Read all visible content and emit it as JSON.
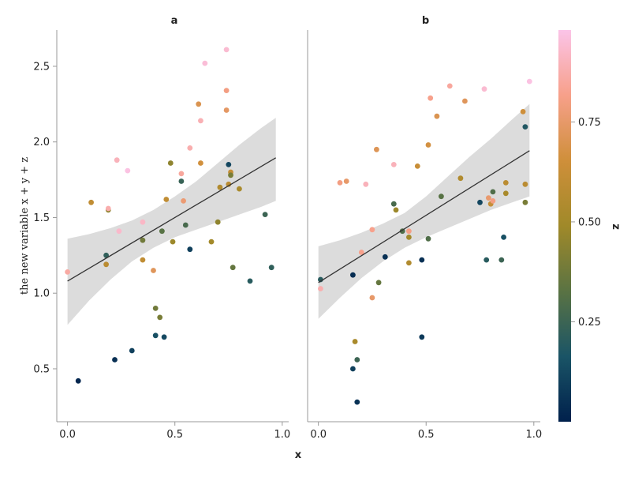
{
  "chart_data": {
    "type": "scatter",
    "xlabel": "x",
    "ylabel": "the new variable x + y + z",
    "colorbar_title": "z",
    "xlim": [
      -0.05,
      1.03
    ],
    "ylim": [
      0.15,
      2.74
    ],
    "x_ticks": [
      0.0,
      0.5,
      1.0
    ],
    "x_tick_labels": [
      "0.0",
      "0.5",
      "1.0"
    ],
    "y_ticks": [
      0.5,
      1.0,
      1.5,
      2.0,
      2.5
    ],
    "y_tick_labels": [
      "0.5",
      "1.0",
      "1.5",
      "2.0",
      "2.5"
    ],
    "colorbar_ticks": [
      0.25,
      0.5,
      0.75
    ],
    "colorbar_tick_labels": [
      "0.25",
      "0.50",
      "0.75"
    ],
    "colorbar_range": [
      0.0,
      0.98
    ],
    "colors": {
      "colormap": [
        "#00204c",
        "#1a5466",
        "#5a7343",
        "#a08929",
        "#cf8f3a",
        "#f7a08a",
        "#fbc4e8"
      ],
      "regression_line": "#333333",
      "confidence_band": "#dcdcdc",
      "axis": "#999999"
    },
    "panels": [
      {
        "title": "a",
        "fit": {
          "intercept": 1.08,
          "slope": 0.84
        },
        "band": {
          "x": [
            0.0,
            0.1,
            0.2,
            0.3,
            0.4,
            0.5,
            0.6,
            0.7,
            0.8,
            0.9,
            0.97
          ],
          "lower": [
            0.79,
            0.95,
            1.09,
            1.21,
            1.3,
            1.37,
            1.42,
            1.47,
            1.52,
            1.57,
            1.61
          ],
          "upper": [
            1.36,
            1.39,
            1.43,
            1.48,
            1.55,
            1.64,
            1.74,
            1.86,
            1.98,
            2.09,
            2.16
          ]
        },
        "points": [
          {
            "x": 0.0,
            "y": 1.14,
            "z": 0.86
          },
          {
            "x": 0.05,
            "y": 0.42,
            "z": 0.02
          },
          {
            "x": 0.11,
            "y": 1.6,
            "z": 0.6
          },
          {
            "x": 0.18,
            "y": 1.25,
            "z": 0.22
          },
          {
            "x": 0.18,
            "y": 1.19,
            "z": 0.58
          },
          {
            "x": 0.19,
            "y": 1.55,
            "z": 0.45
          },
          {
            "x": 0.19,
            "y": 1.56,
            "z": 0.88
          },
          {
            "x": 0.22,
            "y": 0.56,
            "z": 0.05
          },
          {
            "x": 0.23,
            "y": 1.88,
            "z": 0.9
          },
          {
            "x": 0.24,
            "y": 1.41,
            "z": 0.93
          },
          {
            "x": 0.28,
            "y": 1.81,
            "z": 0.97
          },
          {
            "x": 0.3,
            "y": 0.62,
            "z": 0.1
          },
          {
            "x": 0.35,
            "y": 1.47,
            "z": 0.92
          },
          {
            "x": 0.35,
            "y": 1.35,
            "z": 0.38
          },
          {
            "x": 0.35,
            "y": 1.22,
            "z": 0.6
          },
          {
            "x": 0.4,
            "y": 1.15,
            "z": 0.72
          },
          {
            "x": 0.41,
            "y": 0.9,
            "z": 0.38
          },
          {
            "x": 0.41,
            "y": 0.72,
            "z": 0.15
          },
          {
            "x": 0.43,
            "y": 0.84,
            "z": 0.4
          },
          {
            "x": 0.44,
            "y": 1.41,
            "z": 0.32
          },
          {
            "x": 0.45,
            "y": 0.71,
            "z": 0.13
          },
          {
            "x": 0.46,
            "y": 1.62,
            "z": 0.6
          },
          {
            "x": 0.48,
            "y": 1.86,
            "z": 0.45
          },
          {
            "x": 0.49,
            "y": 1.34,
            "z": 0.48
          },
          {
            "x": 0.53,
            "y": 1.79,
            "z": 0.85
          },
          {
            "x": 0.53,
            "y": 1.74,
            "z": 0.24
          },
          {
            "x": 0.54,
            "y": 1.61,
            "z": 0.77
          },
          {
            "x": 0.55,
            "y": 1.45,
            "z": 0.28
          },
          {
            "x": 0.57,
            "y": 1.29,
            "z": 0.1
          },
          {
            "x": 0.57,
            "y": 1.96,
            "z": 0.88
          },
          {
            "x": 0.61,
            "y": 2.25,
            "z": 0.7
          },
          {
            "x": 0.62,
            "y": 2.14,
            "z": 0.89
          },
          {
            "x": 0.62,
            "y": 1.86,
            "z": 0.66
          },
          {
            "x": 0.64,
            "y": 2.52,
            "z": 0.95
          },
          {
            "x": 0.67,
            "y": 1.34,
            "z": 0.5
          },
          {
            "x": 0.7,
            "y": 1.47,
            "z": 0.45
          },
          {
            "x": 0.71,
            "y": 1.7,
            "z": 0.55
          },
          {
            "x": 0.74,
            "y": 2.34,
            "z": 0.8
          },
          {
            "x": 0.74,
            "y": 2.21,
            "z": 0.74
          },
          {
            "x": 0.74,
            "y": 2.61,
            "z": 0.94
          },
          {
            "x": 0.75,
            "y": 1.85,
            "z": 0.12
          },
          {
            "x": 0.75,
            "y": 1.72,
            "z": 0.58
          },
          {
            "x": 0.76,
            "y": 1.8,
            "z": 0.62
          },
          {
            "x": 0.76,
            "y": 1.78,
            "z": 0.4
          },
          {
            "x": 0.77,
            "y": 1.17,
            "z": 0.35
          },
          {
            "x": 0.8,
            "y": 1.69,
            "z": 0.52
          },
          {
            "x": 0.85,
            "y": 1.08,
            "z": 0.2
          },
          {
            "x": 0.92,
            "y": 1.52,
            "z": 0.25
          },
          {
            "x": 0.95,
            "y": 1.17,
            "z": 0.22
          }
        ]
      },
      {
        "title": "b",
        "fit": {
          "intercept": 1.07,
          "slope": 0.89
        },
        "band": {
          "x": [
            0.0,
            0.1,
            0.2,
            0.3,
            0.4,
            0.5,
            0.6,
            0.7,
            0.8,
            0.9,
            0.98
          ],
          "lower": [
            0.83,
            0.97,
            1.1,
            1.21,
            1.3,
            1.37,
            1.43,
            1.49,
            1.55,
            1.6,
            1.64
          ],
          "upper": [
            1.31,
            1.35,
            1.4,
            1.46,
            1.53,
            1.64,
            1.77,
            1.9,
            2.02,
            2.15,
            2.25
          ]
        },
        "points": [
          {
            "x": 0.01,
            "y": 1.03,
            "z": 0.88
          },
          {
            "x": 0.01,
            "y": 1.09,
            "z": 0.2
          },
          {
            "x": 0.1,
            "y": 1.73,
            "z": 0.8
          },
          {
            "x": 0.13,
            "y": 1.74,
            "z": 0.75
          },
          {
            "x": 0.16,
            "y": 0.5,
            "z": 0.1
          },
          {
            "x": 0.16,
            "y": 1.12,
            "z": 0.04
          },
          {
            "x": 0.17,
            "y": 0.68,
            "z": 0.52
          },
          {
            "x": 0.18,
            "y": 0.56,
            "z": 0.25
          },
          {
            "x": 0.18,
            "y": 0.28,
            "z": 0.06
          },
          {
            "x": 0.2,
            "y": 1.27,
            "z": 0.82
          },
          {
            "x": 0.22,
            "y": 1.72,
            "z": 0.9
          },
          {
            "x": 0.25,
            "y": 1.42,
            "z": 0.82
          },
          {
            "x": 0.25,
            "y": 0.97,
            "z": 0.75
          },
          {
            "x": 0.27,
            "y": 1.95,
            "z": 0.71
          },
          {
            "x": 0.28,
            "y": 1.07,
            "z": 0.35
          },
          {
            "x": 0.31,
            "y": 1.24,
            "z": 0.05
          },
          {
            "x": 0.35,
            "y": 1.85,
            "z": 0.9
          },
          {
            "x": 0.35,
            "y": 1.59,
            "z": 0.28
          },
          {
            "x": 0.36,
            "y": 1.55,
            "z": 0.48
          },
          {
            "x": 0.39,
            "y": 1.41,
            "z": 0.3
          },
          {
            "x": 0.42,
            "y": 1.41,
            "z": 0.81
          },
          {
            "x": 0.42,
            "y": 1.37,
            "z": 0.5
          },
          {
            "x": 0.42,
            "y": 1.2,
            "z": 0.55
          },
          {
            "x": 0.46,
            "y": 1.84,
            "z": 0.63
          },
          {
            "x": 0.48,
            "y": 1.22,
            "z": 0.05
          },
          {
            "x": 0.48,
            "y": 0.71,
            "z": 0.08
          },
          {
            "x": 0.51,
            "y": 1.98,
            "z": 0.67
          },
          {
            "x": 0.51,
            "y": 1.36,
            "z": 0.3
          },
          {
            "x": 0.52,
            "y": 2.29,
            "z": 0.82
          },
          {
            "x": 0.55,
            "y": 2.17,
            "z": 0.7
          },
          {
            "x": 0.57,
            "y": 1.64,
            "z": 0.32
          },
          {
            "x": 0.61,
            "y": 2.37,
            "z": 0.85
          },
          {
            "x": 0.66,
            "y": 1.76,
            "z": 0.55
          },
          {
            "x": 0.68,
            "y": 2.27,
            "z": 0.72
          },
          {
            "x": 0.75,
            "y": 1.6,
            "z": 0.12
          },
          {
            "x": 0.77,
            "y": 2.35,
            "z": 0.94
          },
          {
            "x": 0.78,
            "y": 1.22,
            "z": 0.2
          },
          {
            "x": 0.79,
            "y": 1.63,
            "z": 0.76
          },
          {
            "x": 0.8,
            "y": 1.59,
            "z": 0.62
          },
          {
            "x": 0.81,
            "y": 1.67,
            "z": 0.3
          },
          {
            "x": 0.81,
            "y": 1.61,
            "z": 0.8
          },
          {
            "x": 0.85,
            "y": 1.22,
            "z": 0.25
          },
          {
            "x": 0.86,
            "y": 1.37,
            "z": 0.15
          },
          {
            "x": 0.87,
            "y": 1.66,
            "z": 0.52
          },
          {
            "x": 0.87,
            "y": 1.73,
            "z": 0.58
          },
          {
            "x": 0.95,
            "y": 2.2,
            "z": 0.65
          },
          {
            "x": 0.96,
            "y": 2.1,
            "z": 0.18
          },
          {
            "x": 0.96,
            "y": 1.6,
            "z": 0.4
          },
          {
            "x": 0.96,
            "y": 1.72,
            "z": 0.58
          },
          {
            "x": 0.98,
            "y": 2.4,
            "z": 0.97
          }
        ]
      }
    ]
  }
}
